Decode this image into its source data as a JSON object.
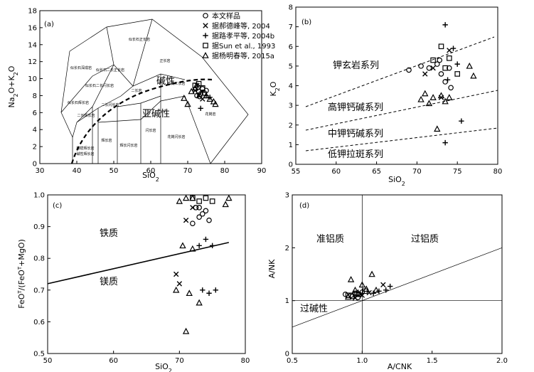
{
  "legend": {
    "entries": [
      {
        "symbol": "circle",
        "label": "本文样品"
      },
      {
        "symbol": "cross",
        "label": "据郝德峰等, 2004"
      },
      {
        "symbol": "plus",
        "label": "据路孝平等, 2004b"
      },
      {
        "symbol": "square",
        "label": "据Sun et al., 1993"
      },
      {
        "symbol": "triangle",
        "label": "据杨明春等, 2015a"
      }
    ]
  },
  "chart_data": [
    {
      "panel": "(a)",
      "type": "scatter",
      "xlabel": "SiO2",
      "ylabel": "Na2O+K2O",
      "xlim": [
        30,
        90
      ],
      "ylim": [
        0,
        18
      ],
      "xticks": [
        "30",
        "40",
        "50",
        "60",
        "70",
        "80",
        "90"
      ],
      "yticks": [
        "0",
        "2",
        "4",
        "6",
        "8",
        "10",
        "12",
        "14",
        "16",
        "18"
      ],
      "region_labels": [
        "碱性",
        "亚碱性"
      ],
      "field_labels": [
        "似长石正长岩",
        "似长石深成岩",
        "似长石二长正长岩",
        "正长岩",
        "似长石二长闪长岩",
        "二长岩",
        "石英二长岩",
        "似长石辉长岩",
        "二长闪长岩",
        "二长辉长岩",
        "辉长岩",
        "辉长闪长岩",
        "闪长岩",
        "花岗闪长岩",
        "花岗岩",
        "橄榄辉长岩",
        "碱性辉长岩"
      ],
      "series": [
        {
          "name": "本文样品",
          "symbol": "circle",
          "points": [
            [
              72.5,
              8.0
            ],
            [
              73.0,
              8.5
            ],
            [
              73.5,
              8.2
            ],
            [
              74.0,
              8.8
            ],
            [
              72.8,
              9.0
            ],
            [
              74.5,
              8.3
            ],
            [
              73.2,
              7.9
            ],
            [
              75.0,
              8.6
            ]
          ]
        },
        {
          "name": "据郝德峰等, 2004",
          "symbol": "cross",
          "points": [
            [
              72.0,
              8.6
            ],
            [
              73.0,
              8.0
            ],
            [
              74.0,
              7.6
            ],
            [
              72.5,
              9.2
            ]
          ]
        },
        {
          "name": "据路孝平等, 2004b",
          "symbol": "plus",
          "points": [
            [
              73.5,
              6.5
            ],
            [
              74.0,
              8.4
            ],
            [
              75.0,
              8.0
            ],
            [
              76.0,
              7.8
            ]
          ]
        },
        {
          "name": "据Sun et al., 1993",
          "symbol": "square",
          "points": [
            [
              72.0,
              9.2
            ],
            [
              73.0,
              9.4
            ],
            [
              74.0,
              8.9
            ]
          ]
        },
        {
          "name": "据杨明春等, 2015a",
          "symbol": "triangle",
          "points": [
            [
              69.0,
              7.7
            ],
            [
              70.0,
              7.0
            ],
            [
              71.0,
              8.5
            ],
            [
              72.0,
              8.9
            ],
            [
              75.0,
              8.0
            ],
            [
              76.0,
              7.6
            ],
            [
              77.0,
              7.3
            ],
            [
              77.5,
              7.0
            ]
          ]
        }
      ]
    },
    {
      "panel": "(b)",
      "type": "scatter",
      "xlabel": "SiO2",
      "ylabel": "K2O",
      "xlim": [
        55,
        80
      ],
      "ylim": [
        0,
        8
      ],
      "xticks": [
        "55",
        "60",
        "65",
        "70",
        "75",
        "80"
      ],
      "yticks": [
        "0",
        "1",
        "2",
        "3",
        "4",
        "5",
        "6",
        "7",
        "8"
      ],
      "series_labels": [
        "钾玄岩系列",
        "高钾钙碱系列",
        "中钾钙碱系列",
        "低钾拉斑系列"
      ],
      "series": [
        {
          "name": "本文样品",
          "symbol": "circle",
          "points": [
            [
              69.0,
              4.8
            ],
            [
              70.5,
              5.0
            ],
            [
              71.5,
              4.9
            ],
            [
              72.5,
              5.1
            ],
            [
              73.0,
              4.6
            ],
            [
              73.5,
              4.2
            ],
            [
              74.0,
              4.9
            ],
            [
              74.2,
              3.9
            ],
            [
              72.8,
              5.3
            ]
          ]
        },
        {
          "name": "据郝德峰等, 2004",
          "symbol": "cross",
          "points": [
            [
              71.0,
              4.6
            ],
            [
              73.0,
              3.4
            ],
            [
              74.0,
              5.8
            ],
            [
              72.0,
              4.9
            ]
          ]
        },
        {
          "name": "据路孝平等, 2004b",
          "symbol": "plus",
          "points": [
            [
              73.5,
              7.1
            ],
            [
              75.5,
              2.2
            ],
            [
              73.5,
              1.1
            ],
            [
              74.5,
              5.9
            ],
            [
              75.0,
              5.1
            ],
            [
              73.8,
              4.3
            ]
          ]
        },
        {
          "name": "据Sun et al., 1993",
          "symbol": "square",
          "points": [
            [
              73.0,
              6.0
            ],
            [
              74.0,
              5.4
            ],
            [
              75.0,
              4.6
            ],
            [
              72.0,
              5.3
            ],
            [
              73.5,
              4.9
            ]
          ]
        },
        {
          "name": "据杨明春等, 2015a",
          "symbol": "triangle",
          "points": [
            [
              70.5,
              3.3
            ],
            [
              71.5,
              3.1
            ],
            [
              72.0,
              3.4
            ],
            [
              73.0,
              3.5
            ],
            [
              73.5,
              3.2
            ],
            [
              74.0,
              3.4
            ],
            [
              72.5,
              1.8
            ],
            [
              76.5,
              5.0
            ],
            [
              77.0,
              4.5
            ],
            [
              71.0,
              3.6
            ]
          ]
        }
      ]
    },
    {
      "panel": "(c)",
      "type": "scatter",
      "xlabel": "SiO2",
      "ylabel": "FeOT/(FeOT+MgO)",
      "xlim": [
        50,
        80
      ],
      "ylim": [
        0.5,
        1.0
      ],
      "xticks": [
        "50",
        "60",
        "70",
        "80"
      ],
      "yticks": [
        "0.5",
        "0.6",
        "0.7",
        "0.8",
        "0.9",
        "1.0"
      ],
      "region_labels": [
        "铁质",
        "镁质"
      ],
      "boundary": [
        [
          50,
          0.72
        ],
        [
          77.5,
          0.85
        ]
      ],
      "series": [
        {
          "name": "本文样品",
          "symbol": "circle",
          "points": [
            [
              72.0,
              0.91
            ],
            [
              73.0,
              0.93
            ],
            [
              74.0,
              0.95
            ],
            [
              72.5,
              0.96
            ],
            [
              73.5,
              0.94
            ],
            [
              74.5,
              0.92
            ],
            [
              73.0,
              0.96
            ]
          ]
        },
        {
          "name": "据郝德峰等, 2004",
          "symbol": "cross",
          "points": [
            [
              69.5,
              0.75
            ],
            [
              70.0,
              0.72
            ],
            [
              71.0,
              0.92
            ],
            [
              72.0,
              0.96
            ]
          ]
        },
        {
          "name": "据路孝平等, 2004b",
          "symbol": "plus",
          "points": [
            [
              73.0,
              0.84
            ],
            [
              74.0,
              0.86
            ],
            [
              75.0,
              0.84
            ],
            [
              73.5,
              0.7
            ],
            [
              74.5,
              0.69
            ],
            [
              75.5,
              0.7
            ]
          ]
        },
        {
          "name": "据Sun et al., 1993",
          "symbol": "square",
          "points": [
            [
              72.0,
              0.99
            ],
            [
              73.0,
              0.98
            ],
            [
              74.0,
              0.99
            ],
            [
              75.0,
              0.98
            ]
          ]
        },
        {
          "name": "据杨明春等, 2015a",
          "symbol": "triangle",
          "points": [
            [
              69.5,
              0.7
            ],
            [
              70.5,
              0.84
            ],
            [
              71.0,
              0.57
            ],
            [
              71.5,
              0.69
            ],
            [
              72.0,
              0.83
            ],
            [
              73.0,
              0.66
            ],
            [
              70.0,
              0.98
            ],
            [
              71.0,
              0.99
            ],
            [
              72.0,
              0.99
            ],
            [
              77.0,
              0.97
            ],
            [
              77.5,
              0.99
            ]
          ]
        }
      ]
    },
    {
      "panel": "(d)",
      "type": "scatter",
      "xlabel": "A/CNK",
      "ylabel": "A/NK",
      "xlim": [
        0.5,
        2.0
      ],
      "ylim": [
        0,
        3
      ],
      "xticks": [
        "0.5",
        "1.0",
        "1.5",
        "2.0"
      ],
      "yticks": [
        "0",
        "1",
        "2",
        "3"
      ],
      "region_labels": [
        "准铝质",
        "过铝质",
        "过碱性"
      ],
      "series": [
        {
          "name": "本文样品",
          "symbol": "circle",
          "points": [
            [
              0.88,
              1.12
            ],
            [
              0.92,
              1.1
            ],
            [
              0.95,
              1.14
            ],
            [
              0.98,
              1.12
            ],
            [
              1.0,
              1.16
            ],
            [
              0.93,
              1.08
            ],
            [
              0.97,
              1.06
            ]
          ]
        },
        {
          "name": "据郝德峰等, 2004",
          "symbol": "cross",
          "points": [
            [
              0.95,
              1.05
            ],
            [
              1.0,
              1.1
            ],
            [
              1.15,
              1.3
            ],
            [
              1.05,
              1.15
            ]
          ]
        },
        {
          "name": "据路孝平等, 2004b",
          "symbol": "plus",
          "points": [
            [
              1.17,
              1.2
            ],
            [
              1.2,
              1.27
            ],
            [
              1.12,
              1.18
            ],
            [
              1.08,
              1.14
            ]
          ]
        },
        {
          "name": "据Sun et al., 1993",
          "symbol": "square",
          "points": [
            [
              0.9,
              1.1
            ],
            [
              0.96,
              1.12
            ],
            [
              1.02,
              1.18
            ]
          ]
        },
        {
          "name": "据杨明春等, 2015a",
          "symbol": "triangle",
          "points": [
            [
              0.92,
              1.4
            ],
            [
              0.95,
              1.2
            ],
            [
              1.0,
              1.3
            ],
            [
              1.03,
              1.22
            ],
            [
              1.07,
              1.5
            ],
            [
              1.1,
              1.2
            ],
            [
              0.97,
              1.15
            ],
            [
              0.9,
              1.07
            ]
          ]
        }
      ]
    }
  ]
}
